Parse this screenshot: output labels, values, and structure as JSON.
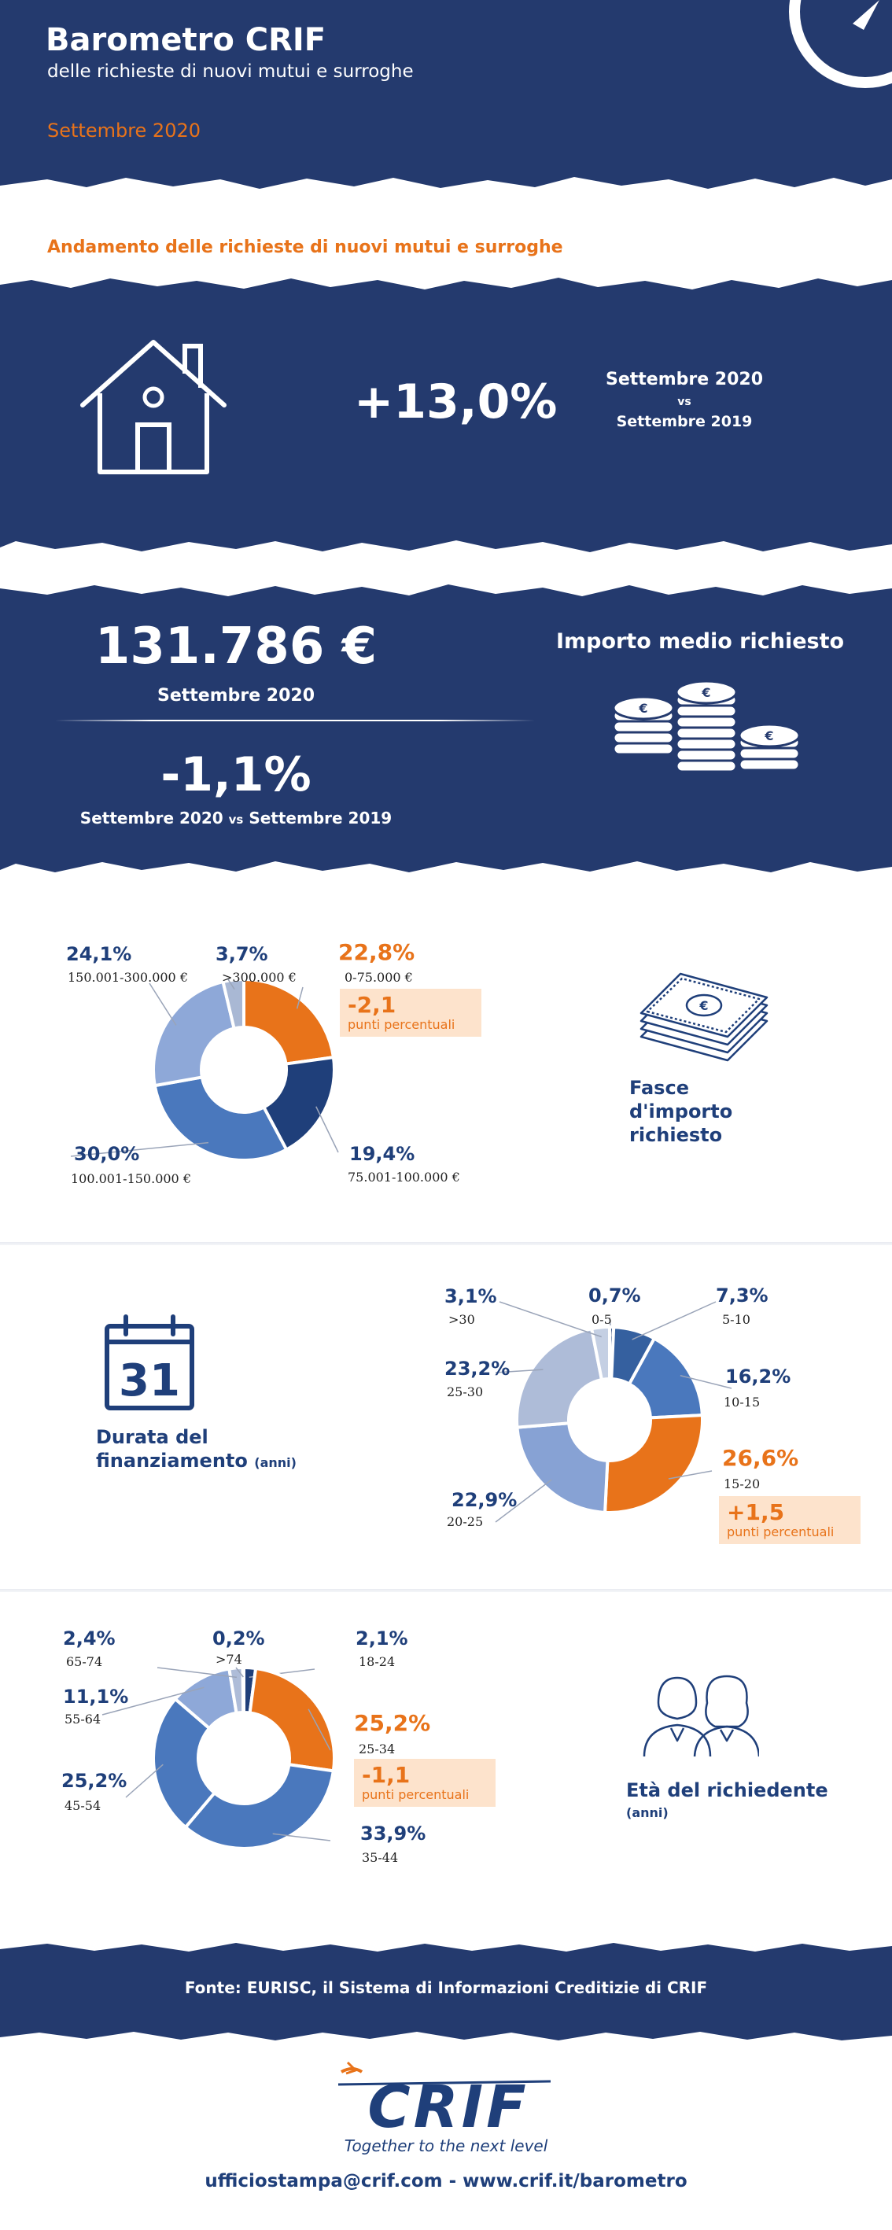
{
  "header": {
    "title": "Barometro CRIF",
    "subtitle": "delle richieste di nuovi mutui e surroghe",
    "period": "Settembre 2020"
  },
  "trend": {
    "title": "Andamento delle richieste di nuovi mutui e surroghe",
    "value": "+13,0%",
    "period_main": "Settembre 2020",
    "vs": "vs",
    "period_compare": "Settembre 2019"
  },
  "amount": {
    "value": "131.786 €",
    "period": "Settembre 2020",
    "change": "-1,1%",
    "change_period_a": "Settembre 2020",
    "change_vs": "vs",
    "change_period_b": "Settembre 2019",
    "label": "Importo medio richiesto"
  },
  "chart_data": [
    {
      "type": "pie",
      "title": "Fasce d'importo richiesto",
      "categories": [
        "0-75.000 €",
        "75.001-100.000 €",
        "100.001-150.000 €",
        "150.001-300.000 €",
        ">300.000 €"
      ],
      "values": [
        22.8,
        19.4,
        30.0,
        24.1,
        3.7
      ],
      "labels": [
        "22,8%",
        "19,4%",
        "30,0%",
        "24,1%",
        "3,7%"
      ],
      "colors": [
        "#e8731a",
        "#1f3f7a",
        "#4a78bd",
        "#8ea8d8",
        "#a9b8d4"
      ],
      "highlight": {
        "value": "-2,1",
        "unit": "punti percentuali"
      }
    },
    {
      "type": "pie",
      "title": "Durata del finanziamento",
      "title_unit": "(anni)",
      "categories": [
        "0-5",
        "5-10",
        "10-15",
        "15-20",
        "20-25",
        "25-30",
        ">30"
      ],
      "values": [
        0.7,
        7.3,
        16.2,
        26.6,
        22.9,
        23.2,
        3.1
      ],
      "labels": [
        "0,7%",
        "7,3%",
        "16,2%",
        "26,6%",
        "22,9%",
        "23,2%",
        "3,1%"
      ],
      "colors": [
        "#1f3f7a",
        "#35609f",
        "#4a78bd",
        "#e8731a",
        "#87a2d4",
        "#aebcd8",
        "#c4cfe3"
      ],
      "highlight": {
        "value": "+1,5",
        "unit": "punti percentuali"
      }
    },
    {
      "type": "pie",
      "title": "Età del richiedente",
      "title_unit": "(anni)",
      "categories": [
        "18-24",
        "25-34",
        "35-44",
        "45-54",
        "55-64",
        "65-74",
        ">74"
      ],
      "values": [
        2.1,
        25.2,
        33.9,
        25.2,
        11.1,
        2.4,
        0.2
      ],
      "labels": [
        "2,1%",
        "25,2%",
        "33,9%",
        "25,2%",
        "11,1%",
        "2,4%",
        "0,2%"
      ],
      "colors": [
        "#1f3f7a",
        "#e8731a",
        "#4a78bd",
        "#4a78bd",
        "#8ea8d8",
        "#aebcd8",
        "#1f3f7a"
      ],
      "highlight": {
        "value": "-1,1",
        "unit": "punti percentuali"
      }
    }
  ],
  "source": "Fonte: EURISC, il Sistema di Informazioni Creditizie di CRIF",
  "footer": {
    "logo_text": "CRIF",
    "tagline": "Together to the next level",
    "contact": "ufficiostampa@crif.com - www.crif.it/barometro"
  },
  "calendar_day": "31",
  "coin_symbol": "€",
  "colors": {
    "navy": "#243a6e",
    "orange": "#e8731a",
    "dark_blue": "#1f3f7a"
  }
}
